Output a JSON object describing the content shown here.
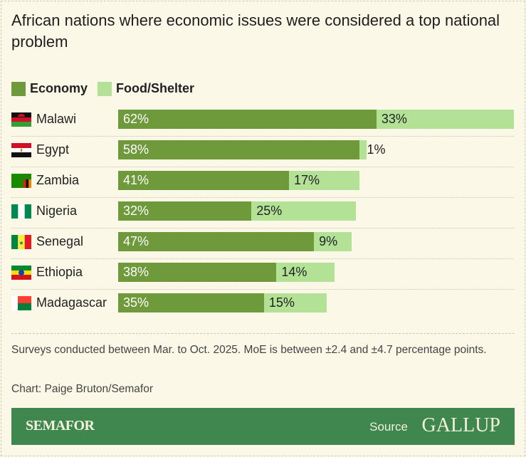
{
  "title": "African nations where economic issues were considered a top national problem",
  "colors": {
    "economy": "#6e9a3b",
    "food_shelter": "#b3e297",
    "footer": "#40874f",
    "background": "#fbf8e8"
  },
  "chart_data": {
    "type": "bar",
    "orientation": "horizontal",
    "stacked": true,
    "title": "African nations where economic issues were considered a top national problem",
    "legend": [
      "Economy",
      "Food/Shelter"
    ],
    "legend_placement": "top-left",
    "categories": [
      "Malawi",
      "Egypt",
      "Zambia",
      "Nigeria",
      "Senegal",
      "Ethiopia",
      "Madagascar"
    ],
    "series": [
      {
        "name": "Economy",
        "values": [
          62,
          58,
          41,
          32,
          47,
          38,
          35
        ],
        "labels": [
          "62%",
          "58%",
          "41%",
          "32%",
          "47%",
          "38%",
          "35%"
        ]
      },
      {
        "name": "Food/Shelter",
        "values": [
          33,
          1,
          17,
          25,
          9,
          14,
          15
        ],
        "labels": [
          "33%",
          "1%",
          "17%",
          "25%",
          "9%",
          "14%",
          "15%"
        ]
      }
    ],
    "xlim": [
      0,
      95
    ],
    "grid": false
  },
  "notes": "Surveys conducted between Mar. to Oct. 2025. MoE is between ±2.4 and ±4.7 percentage points.",
  "credit": "Chart: Paige Bruton/Semafor",
  "footer": {
    "brand": "SEMAFOR",
    "source_label": "Source",
    "source_name": "GALLUP"
  }
}
